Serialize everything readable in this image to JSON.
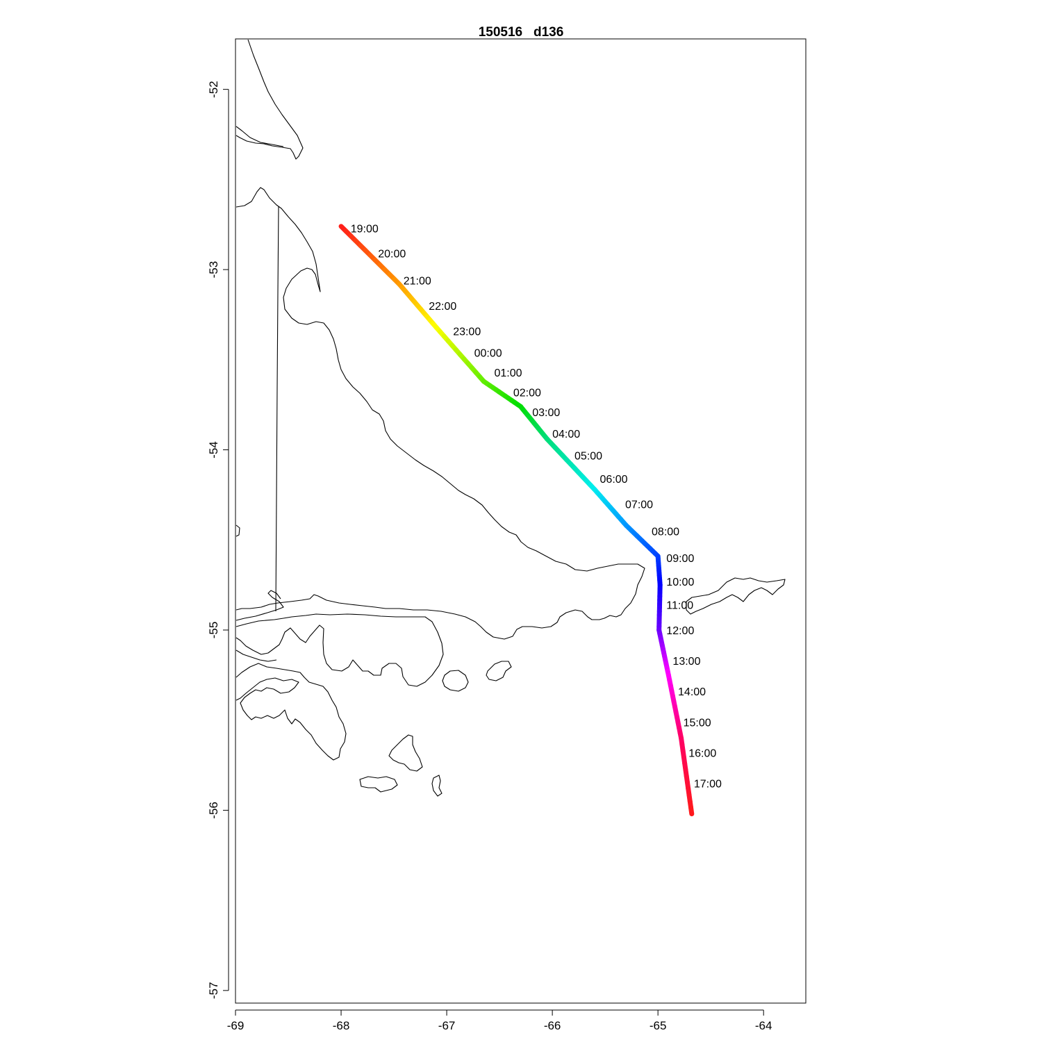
{
  "chart_data": {
    "type": "line",
    "title": "150516   d136",
    "xlabel": "",
    "ylabel": "",
    "xlim": [
      -69.0,
      -63.6
    ],
    "ylim": [
      -57.07,
      -51.72
    ],
    "x_ticks": [
      "-69",
      "-68",
      "-67",
      "-66",
      "-65",
      "-64"
    ],
    "x_tick_values": [
      -69,
      -68,
      -67,
      -66,
      -65,
      -64
    ],
    "y_ticks": [
      "-52",
      "-53",
      "-54",
      "-55",
      "-56",
      "-57"
    ],
    "y_tick_values": [
      -52,
      -53,
      -54,
      -55,
      -56,
      -57
    ],
    "track_points": [
      {
        "lon": -68.0,
        "lat": -52.76,
        "color": "#ff1a1a"
      },
      {
        "lon": -67.45,
        "lat": -53.08,
        "color": "#ff9900"
      },
      {
        "lon": -67.1,
        "lat": -53.32,
        "color": "#ffff00"
      },
      {
        "lon": -66.65,
        "lat": -53.62,
        "color": "#66ee00"
      },
      {
        "lon": -66.3,
        "lat": -53.76,
        "color": "#00dd00"
      },
      {
        "lon": -66.05,
        "lat": -53.94,
        "color": "#00dd77"
      },
      {
        "lon": -65.6,
        "lat": -54.22,
        "color": "#00eeee"
      },
      {
        "lon": -65.3,
        "lat": -54.42,
        "color": "#0099ff"
      },
      {
        "lon": -65.0,
        "lat": -54.59,
        "color": "#0044ff"
      },
      {
        "lon": -64.98,
        "lat": -54.75,
        "color": "#0000ff"
      },
      {
        "lon": -64.99,
        "lat": -55.0,
        "color": "#6600ff"
      },
      {
        "lon": -64.9,
        "lat": -55.25,
        "color": "#ff00ff"
      },
      {
        "lon": -64.78,
        "lat": -55.6,
        "color": "#ff0066"
      },
      {
        "lon": -64.68,
        "lat": -56.02,
        "color": "#ff1a1a"
      }
    ],
    "time_labels": [
      {
        "text": "19:00",
        "lon": -67.91,
        "lat": -52.77
      },
      {
        "text": "20:00",
        "lon": -67.65,
        "lat": -52.91
      },
      {
        "text": "21:00",
        "lon": -67.41,
        "lat": -53.06
      },
      {
        "text": "22:00",
        "lon": -67.17,
        "lat": -53.2
      },
      {
        "text": "23:00",
        "lon": -66.94,
        "lat": -53.34
      },
      {
        "text": "00:00",
        "lon": -66.74,
        "lat": -53.46
      },
      {
        "text": "01:00",
        "lon": -66.55,
        "lat": -53.57
      },
      {
        "text": "02:00",
        "lon": -66.37,
        "lat": -53.68
      },
      {
        "text": "03:00",
        "lon": -66.19,
        "lat": -53.79
      },
      {
        "text": "04:00",
        "lon": -66.0,
        "lat": -53.91
      },
      {
        "text": "05:00",
        "lon": -65.79,
        "lat": -54.03
      },
      {
        "text": "06:00",
        "lon": -65.55,
        "lat": -54.16
      },
      {
        "text": "07:00",
        "lon": -65.31,
        "lat": -54.3
      },
      {
        "text": "08:00",
        "lon": -65.06,
        "lat": -54.45
      },
      {
        "text": "09:00",
        "lon": -64.92,
        "lat": -54.6
      },
      {
        "text": "10:00",
        "lon": -64.92,
        "lat": -54.73
      },
      {
        "text": "11:00",
        "lon": -64.92,
        "lat": -54.86
      },
      {
        "text": "12:00",
        "lon": -64.92,
        "lat": -55.0
      },
      {
        "text": "13:00",
        "lon": -64.86,
        "lat": -55.17
      },
      {
        "text": "14:00",
        "lon": -64.81,
        "lat": -55.34
      },
      {
        "text": "15:00",
        "lon": -64.76,
        "lat": -55.51
      },
      {
        "text": "16:00",
        "lon": -64.71,
        "lat": -55.68
      },
      {
        "text": "17:00",
        "lon": -64.66,
        "lat": -55.85
      }
    ],
    "grid": false,
    "legend": "none",
    "basemap": "coastline"
  }
}
